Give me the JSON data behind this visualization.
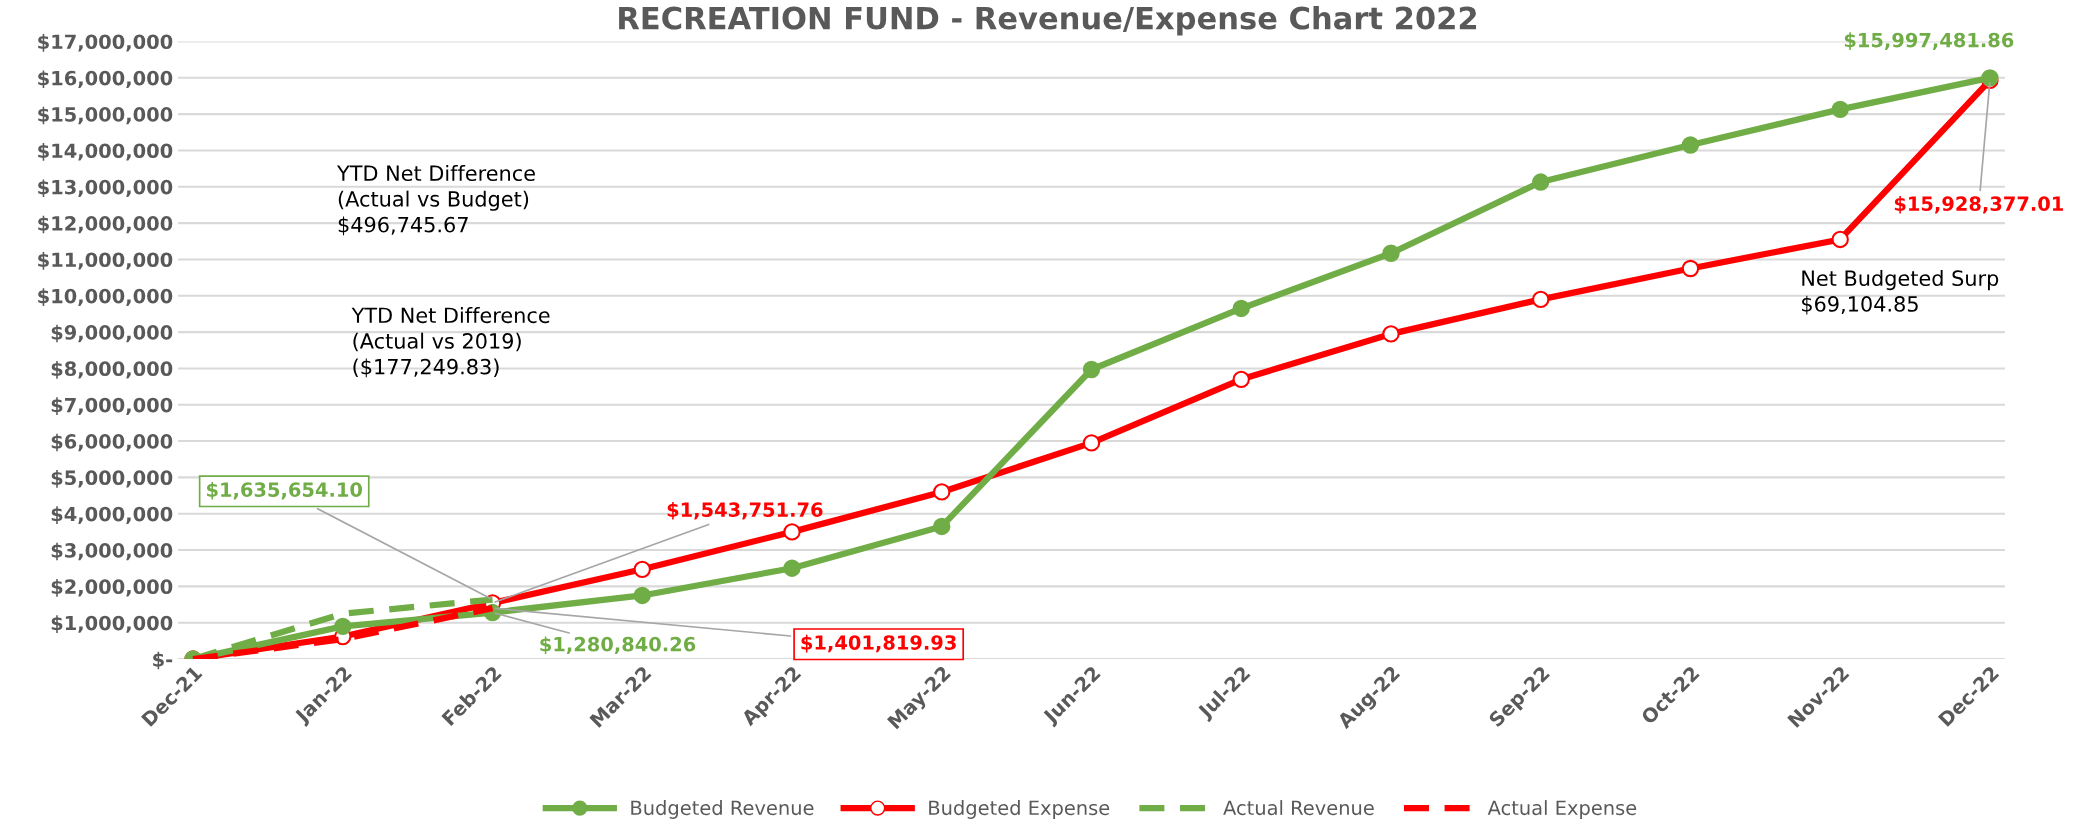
{
  "chart_data": {
    "type": "line",
    "title": "RECREATION FUND - Revenue/Expense Chart 2022",
    "categories": [
      "Dec-21",
      "Jan-22",
      "Feb-22",
      "Mar-22",
      "Apr-22",
      "May-22",
      "Jun-22",
      "Jul-22",
      "Aug-22",
      "Sep-22",
      "Oct-22",
      "Nov-22",
      "Dec-22"
    ],
    "series": [
      {
        "name": "Budgeted Revenue",
        "color": "#70ad47",
        "marker": "circle",
        "line_style": "solid",
        "values": [
          0,
          900000,
          1280840.26,
          1750000,
          2500000,
          3650000,
          7970000,
          9650000,
          11170000,
          13130000,
          14150000,
          15130000,
          15997481.86
        ],
        "value_labels": [
          null,
          null,
          "$1,280,840.26",
          null,
          null,
          null,
          null,
          null,
          null,
          null,
          null,
          null,
          "$15,997,481.86"
        ]
      },
      {
        "name": "Budgeted Expense",
        "color": "#ff0000",
        "marker": "circle",
        "line_style": "solid",
        "values": [
          0,
          620000,
          1543751.76,
          2470000,
          3500000,
          4600000,
          5950000,
          7700000,
          8950000,
          9900000,
          10750000,
          11550000,
          15928377.01
        ],
        "value_labels": [
          null,
          null,
          "$1,543,751.76",
          null,
          null,
          null,
          null,
          null,
          null,
          null,
          null,
          null,
          "$15,928,377.01"
        ]
      },
      {
        "name": "Actual Revenue",
        "color": "#70ad47",
        "marker": "none",
        "line_style": "dashed",
        "values": [
          0,
          1250000,
          1635654.1,
          null,
          null,
          null,
          null,
          null,
          null,
          null,
          null,
          null,
          null
        ],
        "value_labels": [
          null,
          null,
          "$1,635,654.10",
          null,
          null,
          null,
          null,
          null,
          null,
          null,
          null,
          null,
          null
        ]
      },
      {
        "name": "Actual Expense",
        "color": "#ff0000",
        "marker": "none",
        "line_style": "dashed",
        "values": [
          0,
          550000,
          1401819.93,
          null,
          null,
          null,
          null,
          null,
          null,
          null,
          null,
          null,
          null
        ],
        "value_labels": [
          null,
          null,
          "$1,401,819.93",
          null,
          null,
          null,
          null,
          null,
          null,
          null,
          null,
          null,
          null
        ]
      }
    ],
    "ylim": [
      0,
      17000000
    ],
    "yticks": [
      {
        "value": 0,
        "label": "$-"
      },
      {
        "value": 1000000,
        "label": "$1,000,000"
      },
      {
        "value": 2000000,
        "label": "$2,000,000"
      },
      {
        "value": 3000000,
        "label": "$3,000,000"
      },
      {
        "value": 4000000,
        "label": "$4,000,000"
      },
      {
        "value": 5000000,
        "label": "$5,000,000"
      },
      {
        "value": 6000000,
        "label": "$6,000,000"
      },
      {
        "value": 7000000,
        "label": "$7,000,000"
      },
      {
        "value": 8000000,
        "label": "$8,000,000"
      },
      {
        "value": 9000000,
        "label": "$9,000,000"
      },
      {
        "value": 10000000,
        "label": "$10,000,000"
      },
      {
        "value": 11000000,
        "label": "$11,000,000"
      },
      {
        "value": 12000000,
        "label": "$12,000,000"
      },
      {
        "value": 13000000,
        "label": "$13,000,000"
      },
      {
        "value": 14000000,
        "label": "$14,000,000"
      },
      {
        "value": 15000000,
        "label": "$15,000,000"
      },
      {
        "value": 16000000,
        "label": "$16,000,000"
      },
      {
        "value": 17000000,
        "label": "$17,000,000"
      }
    ],
    "grid": "y",
    "legend": "bottom",
    "annotations": [
      "YTD Net Difference\n(Actual vs Budget)\n$496,745.67",
      "YTD Net Difference\n(Actual vs 2019)\n($177,249.83)",
      "Net Budgeted Surp\n$69,104.85"
    ]
  }
}
